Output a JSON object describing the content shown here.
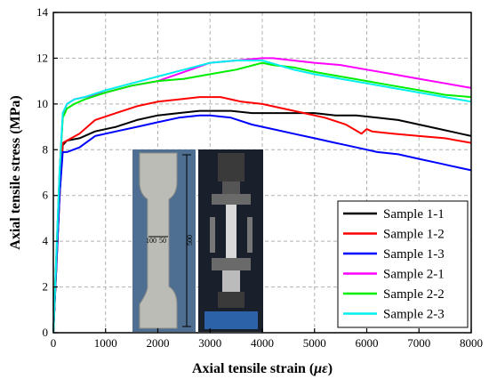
{
  "chart_data": {
    "type": "line",
    "title": "",
    "xlabel_prefix": "Axial tensile strain (",
    "xlabel_unit": "με",
    "xlabel_suffix": ")",
    "ylabel": "Axial tensile stress (MPa)",
    "xlim": [
      0,
      8000
    ],
    "ylim": [
      0,
      14
    ],
    "xticks": [
      0,
      1000,
      2000,
      3000,
      4000,
      5000,
      6000,
      7000,
      8000
    ],
    "yticks": [
      0,
      2,
      4,
      6,
      8,
      10,
      12,
      14
    ],
    "grid": true,
    "legend_position": "bottom-right",
    "series": [
      {
        "name": "Sample 1-1",
        "color": "#000000",
        "x": [
          0,
          60,
          120,
          180,
          260,
          500,
          800,
          1200,
          1600,
          2000,
          2400,
          2800,
          3000,
          3400,
          3800,
          4200,
          4600,
          5000,
          5400,
          5800,
          6200,
          6600,
          7000,
          7400,
          7800,
          8000
        ],
        "y": [
          0,
          3.0,
          6.0,
          8.2,
          8.4,
          8.5,
          8.8,
          9.0,
          9.3,
          9.5,
          9.6,
          9.7,
          9.7,
          9.7,
          9.6,
          9.6,
          9.6,
          9.6,
          9.5,
          9.5,
          9.4,
          9.3,
          9.1,
          8.9,
          8.7,
          8.6
        ]
      },
      {
        "name": "Sample 1-2",
        "color": "#ff0000",
        "x": [
          0,
          60,
          120,
          180,
          260,
          500,
          800,
          1200,
          1600,
          2000,
          2400,
          2800,
          3000,
          3200,
          3600,
          4000,
          4400,
          4800,
          5200,
          5600,
          5900,
          6000,
          6100,
          6500,
          7000,
          7500,
          8000
        ],
        "y": [
          0,
          3.0,
          6.0,
          8.3,
          8.4,
          8.7,
          9.3,
          9.6,
          9.9,
          10.1,
          10.2,
          10.3,
          10.3,
          10.3,
          10.1,
          10.0,
          9.8,
          9.6,
          9.4,
          9.1,
          8.7,
          8.9,
          8.8,
          8.7,
          8.6,
          8.5,
          8.3
        ]
      },
      {
        "name": "Sample 1-3",
        "color": "#0000ff",
        "x": [
          0,
          60,
          120,
          180,
          260,
          500,
          800,
          1200,
          1600,
          2000,
          2400,
          2800,
          3000,
          3400,
          3800,
          4200,
          4600,
          5000,
          5400,
          5800,
          6200,
          6600,
          7000,
          7400,
          7800,
          8000
        ],
        "y": [
          0,
          3.0,
          6.0,
          7.9,
          7.9,
          8.1,
          8.6,
          8.8,
          9.0,
          9.2,
          9.4,
          9.5,
          9.5,
          9.4,
          9.1,
          8.9,
          8.7,
          8.5,
          8.3,
          8.1,
          7.9,
          7.8,
          7.6,
          7.4,
          7.2,
          7.1
        ]
      },
      {
        "name": "Sample 2-1",
        "color": "#ff00ff",
        "x": [
          0,
          60,
          120,
          180,
          260,
          400,
          600,
          1000,
          1500,
          2000,
          2500,
          3000,
          3500,
          4000,
          4200,
          4600,
          5000,
          5500,
          6000,
          6500,
          7000,
          7500,
          8000
        ],
        "y": [
          0,
          3.5,
          7.0,
          9.5,
          10.0,
          10.2,
          10.3,
          10.5,
          10.8,
          11.0,
          11.4,
          11.8,
          11.9,
          12.0,
          12.0,
          11.9,
          11.8,
          11.7,
          11.5,
          11.3,
          11.1,
          10.9,
          10.7
        ]
      },
      {
        "name": "Sample 2-2",
        "color": "#00ee00",
        "x": [
          0,
          60,
          120,
          180,
          260,
          400,
          600,
          1000,
          1500,
          2000,
          2500,
          3000,
          3500,
          4000,
          4200,
          4600,
          5000,
          5500,
          6000,
          6500,
          7000,
          7500,
          8000
        ],
        "y": [
          0,
          3.5,
          7.0,
          9.4,
          9.8,
          10.0,
          10.2,
          10.5,
          10.8,
          11.0,
          11.1,
          11.3,
          11.5,
          11.8,
          11.7,
          11.6,
          11.4,
          11.2,
          11.0,
          10.8,
          10.6,
          10.4,
          10.3
        ]
      },
      {
        "name": "Sample 2-3",
        "color": "#00eeee",
        "x": [
          0,
          60,
          120,
          180,
          260,
          400,
          600,
          1000,
          1500,
          2000,
          2500,
          3000,
          3500,
          3800,
          4000,
          4300,
          4600,
          5000,
          5500,
          6000,
          6500,
          7000,
          7500,
          8000
        ],
        "y": [
          0,
          3.5,
          7.0,
          9.6,
          10.0,
          10.2,
          10.3,
          10.6,
          10.9,
          11.2,
          11.5,
          11.8,
          11.9,
          11.9,
          11.9,
          11.7,
          11.5,
          11.3,
          11.1,
          10.9,
          10.7,
          10.5,
          10.3,
          10.1
        ]
      }
    ],
    "inset_photo": {
      "dimension_labels": [
        "100",
        "50",
        "500"
      ]
    }
  }
}
